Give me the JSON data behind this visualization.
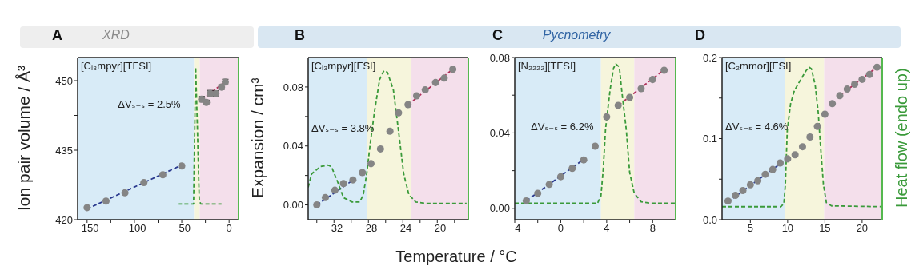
{
  "chart_data": [
    {
      "type": "scatter",
      "title": "A",
      "subtitle": "XRD",
      "ylabel": "Ion pair volume / Å³",
      "line_style": "dashed",
      "xlim": [
        -160,
        10
      ],
      "xticks": [
        {
          "value": -150,
          "label": "−150"
        },
        {
          "value": -125,
          "label": null
        },
        {
          "value": -100,
          "label": "−100"
        },
        {
          "value": -75,
          "label": null
        },
        {
          "value": -50,
          "label": "−50"
        },
        {
          "value": -25,
          "label": null
        },
        0
      ],
      "ylim": [
        420,
        455
      ],
      "yticks": [
        420,
        {
          "value": 427.5,
          "label": null
        },
        435,
        {
          "value": 442.5,
          "label": null
        },
        450
      ],
      "bands": [
        {
          "axis": "x",
          "from": -160,
          "to": -37,
          "color": "#d8ebf7"
        },
        {
          "axis": "x",
          "from": -37,
          "to": -31,
          "color": "#f6f5dc"
        },
        {
          "axis": "x",
          "from": -31,
          "to": 10,
          "color": "#f4dfeb"
        }
      ],
      "annotations": [
        "[Cᵢ₃mpyr][TFSI]",
        "ΔVₛ₋ₛ = 2.5%"
      ],
      "series": [
        {
          "type": "scatter",
          "marker": "circle",
          "color": "#858585",
          "x": [
            -150,
            -130,
            -110,
            -90,
            -70,
            -50,
            -29,
            -24,
            -20,
            -14,
            -8,
            -4
          ],
          "values": [
            422.6,
            424,
            425.8,
            428,
            429.7,
            431.6,
            446,
            445.3,
            447.2,
            447.2,
            448.6,
            449.7
          ],
          "errors": [
            null,
            null,
            null,
            null,
            null,
            null,
            0.6,
            0.5,
            0.7,
            0.6,
            0.5,
            0.6
          ]
        },
        {
          "type": "line",
          "color": "#2b3a8f",
          "x": [
            -150,
            -50
          ],
          "values": [
            422.3,
            431.8
          ]
        },
        {
          "type": "line",
          "color": "#b0305a",
          "x": [
            -29,
            -4
          ],
          "values": [
            445.8,
            449.8
          ]
        },
        {
          "type": "line",
          "color": "#3a9a3a",
          "x": [
            -54,
            -37.5,
            -35.3,
            -33.5,
            -31.5,
            -30,
            -8
          ],
          "values": [
            423.4,
            423.4,
            452.9,
            440,
            424.3,
            423.4,
            423.4
          ]
        }
      ]
    },
    {
      "type": "scatter",
      "title": "B",
      "ylabel": "Expansion / cm³",
      "xlabel": "Temperature / °C",
      "line_style": "dashed",
      "xlim": [
        -35,
        -16.4
      ],
      "xticks": [
        {
          "value": -34,
          "label": null
        },
        {
          "value": -32,
          "label": "−32"
        },
        {
          "value": -30,
          "label": null
        },
        {
          "value": -28,
          "label": "−28"
        },
        {
          "value": -26,
          "label": null
        },
        {
          "value": -24,
          "label": "−24"
        },
        {
          "value": -22,
          "label": null
        },
        {
          "value": -20,
          "label": "−20"
        },
        {
          "value": -18,
          "label": null
        }
      ],
      "ylim": [
        -0.01,
        0.1
      ],
      "yticks": [
        {
          "value": 0,
          "label": "0.00"
        },
        {
          "value": 0.02,
          "label": null
        },
        {
          "value": 0.04,
          "label": "0.04"
        },
        {
          "value": 0.06,
          "label": null
        },
        {
          "value": 0.08,
          "label": "0.08"
        }
      ],
      "bands": [
        {
          "axis": "x",
          "from": -35,
          "to": -28.2,
          "color": "#d8ebf7"
        },
        {
          "axis": "x",
          "from": -28.2,
          "to": -23,
          "color": "#f6f5dc"
        },
        {
          "axis": "x",
          "from": -23,
          "to": -16.4,
          "color": "#f4dfeb"
        }
      ],
      "annotations": [
        "[Cᵢ₃mpyr][FSI]",
        "ΔVₛ₋ₛ = 3.8%"
      ],
      "series": [
        {
          "type": "scatter",
          "marker": "circle",
          "color": "#858585",
          "x": [
            -34,
            -33,
            -31.9,
            -30.9,
            -29.8,
            -28.7,
            -27.7,
            -26.6,
            -25.5,
            -24.5,
            -23.4,
            -22.4,
            -21.4,
            -20.2,
            -19.2,
            -18.2
          ],
          "values": [
            0,
            0.005,
            0.01,
            0.0145,
            0.017,
            0.022,
            0.028,
            0.038,
            0.05,
            0.0625,
            0.068,
            0.074,
            0.078,
            0.083,
            0.086,
            0.092
          ]
        },
        {
          "type": "line",
          "color": "#2b3a8f",
          "x": [
            -34,
            -29.5
          ],
          "values": [
            0,
            0.018
          ]
        },
        {
          "type": "line",
          "color": "#b0305a",
          "x": [
            -23.4,
            -18.2
          ],
          "values": [
            0.068,
            0.092
          ]
        },
        {
          "type": "line",
          "color": "#3a9a3a",
          "x": [
            -35,
            -34.6,
            -33.6,
            -32.7,
            -32.3,
            -31.6,
            -30.9,
            -29.9,
            -29,
            -28.6,
            -28.2,
            -27.8,
            -27.3,
            -26.7,
            -26.2,
            -25.8,
            -25.1,
            -24.5,
            -23.9,
            -23.3,
            -22.5,
            -21.3,
            -16.6
          ],
          "values": [
            0.012,
            0.021,
            0.026,
            0.027,
            0.026,
            0.016,
            0.005,
            0.002,
            0.002,
            0.007,
            0.021,
            0.041,
            0.063,
            0.085,
            0.091,
            0.09,
            0.078,
            0.05,
            0.021,
            0.007,
            0.002,
            0.001,
            0.001
          ]
        }
      ]
    },
    {
      "type": "scatter",
      "title": "C",
      "subtitle": "Pycnometry",
      "line_style": "dashed",
      "xlim": [
        -4,
        10
      ],
      "xticks": [
        {
          "value": -4,
          "label": "−4"
        },
        {
          "value": -2,
          "label": null
        },
        0,
        {
          "value": 2,
          "label": null
        },
        4,
        {
          "value": 6,
          "label": null
        },
        8
      ],
      "ylim": [
        -0.006,
        0.08
      ],
      "yticks": [
        {
          "value": 0,
          "label": "0.00"
        },
        {
          "value": 0.02,
          "label": null
        },
        {
          "value": 0.04,
          "label": "0.04"
        },
        {
          "value": 0.06,
          "label": null
        },
        {
          "value": 0.08,
          "label": "0.08"
        }
      ],
      "bands": [
        {
          "axis": "x",
          "from": -4,
          "to": 3.5,
          "color": "#d8ebf7"
        },
        {
          "axis": "x",
          "from": 3.5,
          "to": 6.4,
          "color": "#f6f5dc"
        },
        {
          "axis": "x",
          "from": 6.4,
          "to": 10,
          "color": "#f4dfeb"
        }
      ],
      "annotations": [
        "[N₂₂₂₂][TFSI]",
        "ΔVₛ₋ₛ = 6.2%"
      ],
      "series": [
        {
          "type": "scatter",
          "marker": "circle",
          "color": "#858585",
          "x": [
            -3,
            -2,
            -1,
            0,
            1,
            2,
            3,
            4,
            5,
            6,
            7,
            8,
            9
          ],
          "values": [
            0.004,
            0.008,
            0.0127,
            0.0168,
            0.0212,
            0.0257,
            0.033,
            0.0485,
            0.0546,
            0.0588,
            0.0635,
            0.0683,
            0.0732
          ]
        },
        {
          "type": "line",
          "color": "#2b3a8f",
          "x": [
            -3,
            2
          ],
          "values": [
            0.004,
            0.026
          ]
        },
        {
          "type": "line",
          "color": "#b0305a",
          "x": [
            5,
            9
          ],
          "values": [
            0.0545,
            0.0735
          ]
        },
        {
          "type": "line",
          "color": "#3a9a3a",
          "x": [
            -4,
            3.2,
            3.5,
            3.7,
            3.9,
            4.3,
            4.6,
            4.8,
            5.1,
            5.3,
            5.7,
            6,
            6.4,
            7,
            7.9,
            10
          ],
          "values": [
            0.0027,
            0.0027,
            0.0066,
            0.0207,
            0.042,
            0.063,
            0.0744,
            0.0765,
            0.075,
            0.063,
            0.042,
            0.019,
            0.008,
            0.0035,
            0.0027,
            0.0027
          ]
        }
      ]
    },
    {
      "type": "scatter",
      "title": "D",
      "y2label": "Heat flow (endo up)",
      "line_style": "dashed",
      "xlim": [
        1.2,
        22.7
      ],
      "xticks": [
        5,
        10,
        15,
        20
      ],
      "ylim": [
        0,
        0.2
      ],
      "yticks": [
        {
          "value": 0,
          "label": "0.0"
        },
        {
          "value": 0.05,
          "label": null
        },
        0.1,
        {
          "value": 0.15,
          "label": null
        },
        0.2
      ],
      "bands": [
        {
          "axis": "x",
          "from": 1.2,
          "to": 9.6,
          "color": "#d8ebf7"
        },
        {
          "axis": "x",
          "from": 9.6,
          "to": 14.9,
          "color": "#f6f5dc"
        },
        {
          "axis": "x",
          "from": 14.9,
          "to": 22.7,
          "color": "#f4dfeb"
        }
      ],
      "annotations": [
        "[C₂mmor][FSI]",
        "ΔVₛ₋ₛ = 4.6%"
      ],
      "series": [
        {
          "type": "scatter",
          "marker": "circle",
          "color": "#858585",
          "x": [
            2,
            3,
            4,
            5,
            6,
            7,
            8,
            9,
            10,
            11,
            12,
            13,
            14,
            15,
            16,
            17,
            18,
            19,
            20,
            21,
            22
          ],
          "values": [
            0.023,
            0.03,
            0.036,
            0.043,
            0.048,
            0.056,
            0.062,
            0.07,
            0.075,
            0.08,
            0.09,
            0.102,
            0.115,
            0.13,
            0.143,
            0.153,
            0.161,
            0.167,
            0.173,
            0.179,
            0.188
          ]
        },
        {
          "type": "line",
          "color": "#2b3a8f",
          "x": [
            2,
            9
          ],
          "values": [
            0.022,
            0.069
          ]
        },
        {
          "type": "line",
          "color": "#b0305a",
          "x": [
            17,
            22
          ],
          "values": [
            0.153,
            0.188
          ]
        },
        {
          "type": "line",
          "color": "#3a9a3a",
          "x": [
            1.2,
            9.1,
            9.5,
            9.7,
            9.95,
            10.4,
            10.9,
            11.4,
            11.9,
            12.5,
            12.9,
            13.2,
            13.7,
            14.1,
            14.4,
            14.8,
            15.2,
            15.9,
            22.7
          ],
          "values": [
            0.016,
            0.016,
            0.02,
            0.044,
            0.11,
            0.143,
            0.159,
            0.167,
            0.175,
            0.184,
            0.188,
            0.186,
            0.166,
            0.133,
            0.093,
            0.044,
            0.021,
            0.017,
            0.016
          ]
        }
      ]
    }
  ]
}
